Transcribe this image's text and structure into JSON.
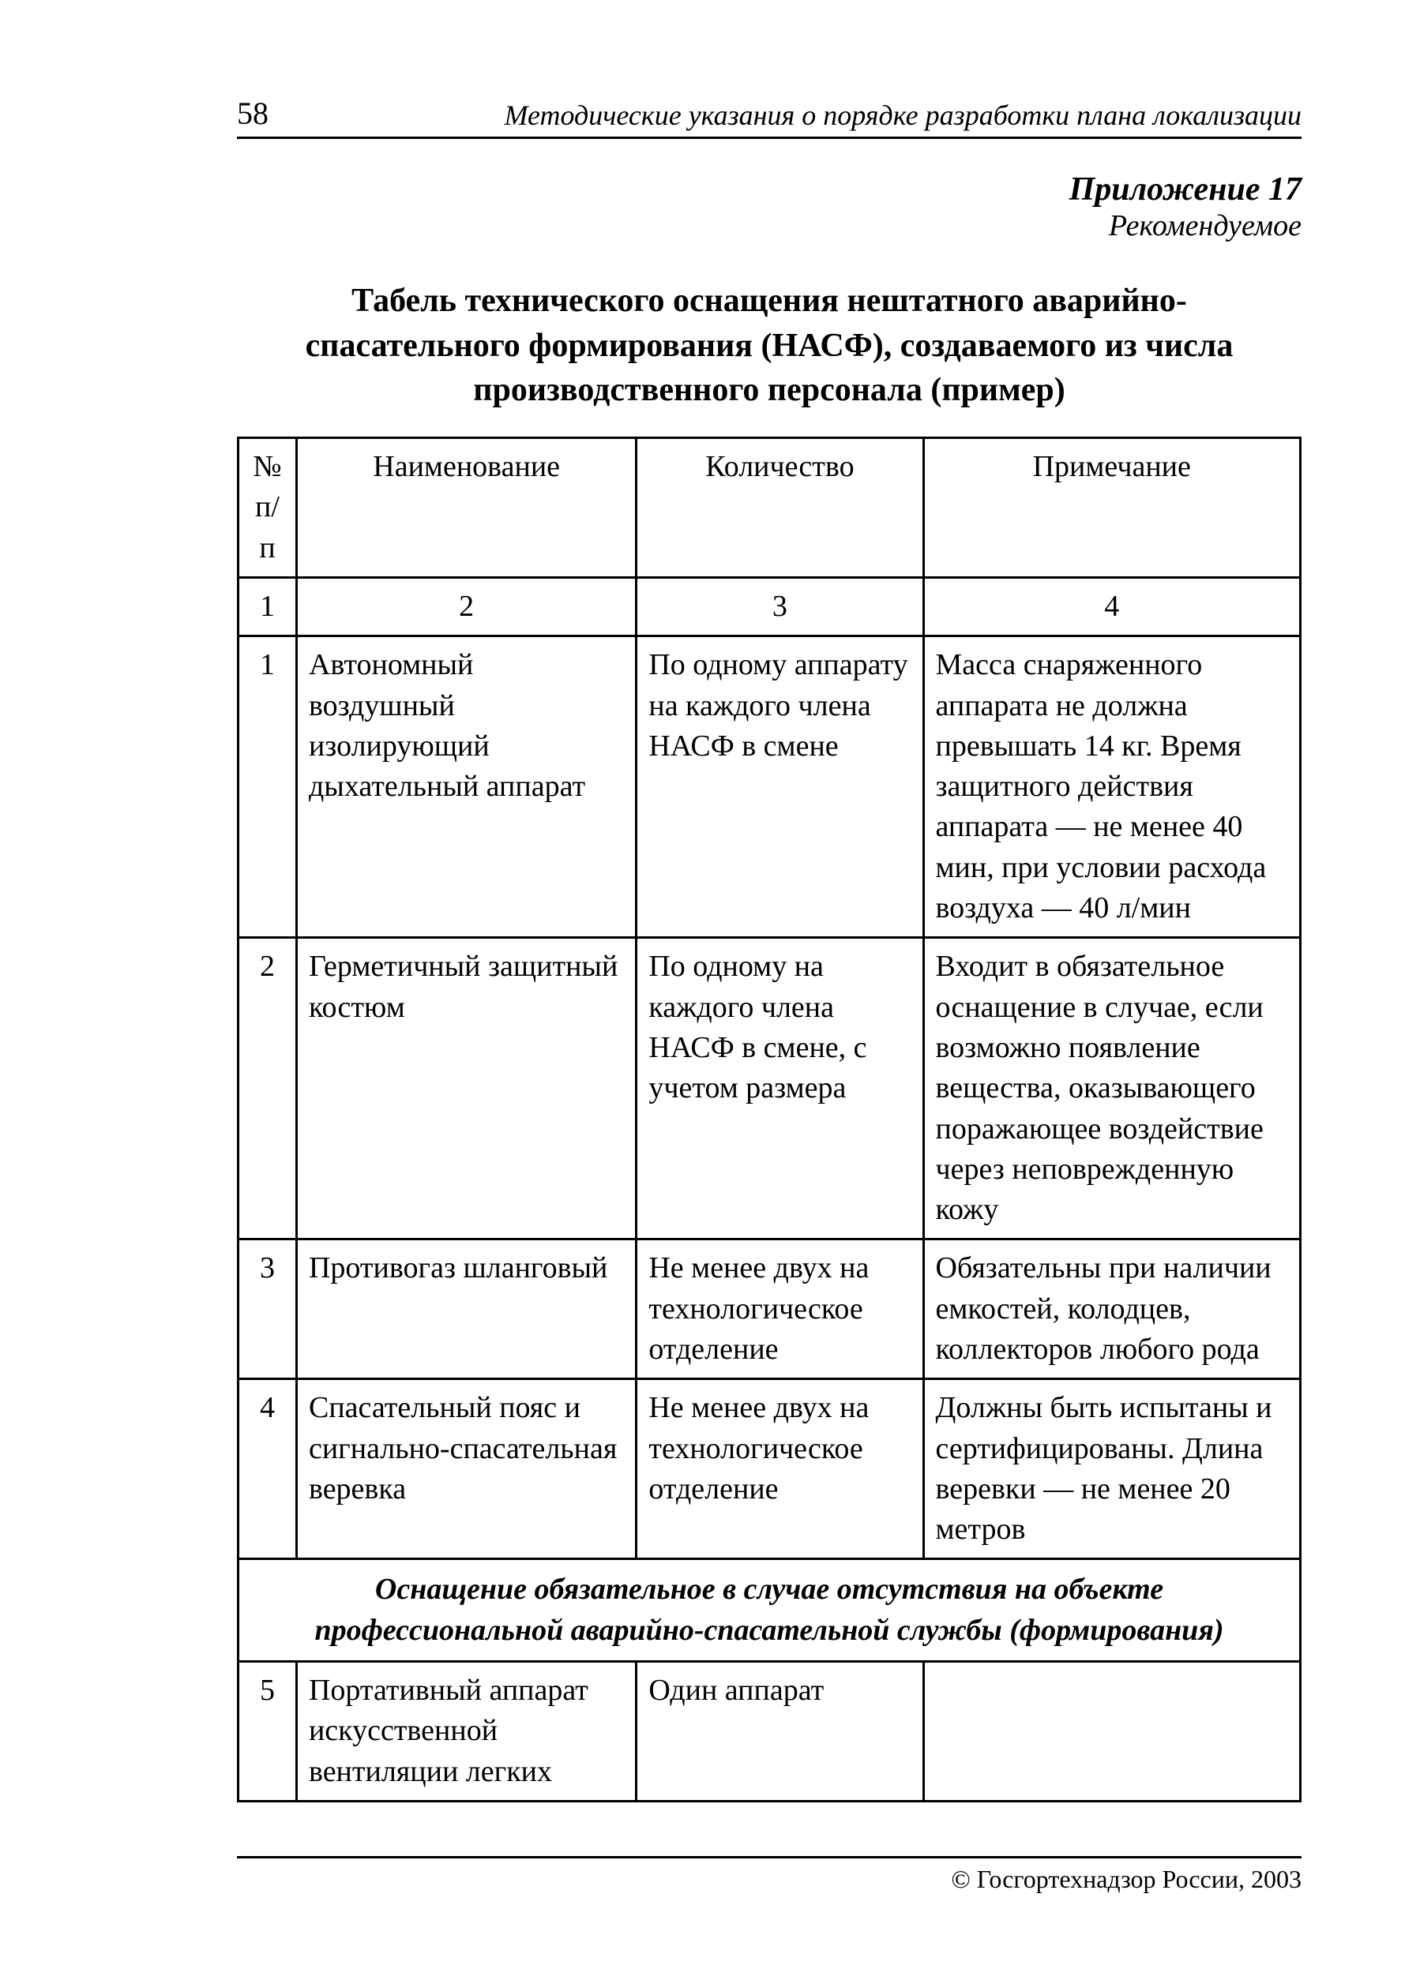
{
  "page": {
    "number": "58",
    "header": "Методические указания о порядке разработки плана локализации",
    "footer": "© Госгортехнадзор России, 2003"
  },
  "appendix": {
    "title": "Приложение 17",
    "subtitle": "Рекомендуемое"
  },
  "main_title": "Табель технического оснащения нештатного аварийно-спасательного формирования (НАСФ), создаваемого из числа производственного персонала (пример)",
  "table": {
    "headers": {
      "num": "№ п/п",
      "name": "Наименование",
      "qty": "Количество",
      "note": "Примечание"
    },
    "col_numbers": {
      "c1": "1",
      "c2": "2",
      "c3": "3",
      "c4": "4"
    },
    "rows": [
      {
        "num": "1",
        "name": "Автономный воздушный изолирующий дыхательный аппарат",
        "qty": "По одному аппарату на каждого члена НАСФ в смене",
        "note": "Масса снаряженного аппарата не должна превышать 14 кг. Время защитного действия аппарата — не менее 40 мин, при условии расхода воздуха — 40 л/мин"
      },
      {
        "num": "2",
        "name": "Герметичный защитный костюм",
        "qty": "По одному на каждого члена НАСФ в смене, с учетом размера",
        "note": "Входит в обязательное оснащение в случае, если возможно появление вещества, оказывающего поражающее воздействие через неповрежденную кожу"
      },
      {
        "num": "3",
        "name": "Противогаз шланговый",
        "qty": "Не менее двух на технологическое отделение",
        "note": "Обязательны при наличии емкостей, колодцев, коллекторов любого рода"
      },
      {
        "num": "4",
        "name": "Спасательный пояс и сигнально-спасательная веревка",
        "qty": "Не менее двух на технологическое отделение",
        "note": "Должны быть испытаны и сертифицированы. Длина веревки — не менее 20 метров"
      }
    ],
    "section_title": "Оснащение обязательное в случае отсутствия на объекте профессиональной аварийно-спасательной службы (формирования)",
    "rows2": [
      {
        "num": "5",
        "name": "Портативный аппарат искусственной вентиляции легких",
        "qty": "Один аппарат",
        "note": ""
      }
    ]
  },
  "styling": {
    "font_family": "Times New Roman",
    "body_font_size": 38,
    "title_font_size": 42,
    "header_font_size": 36,
    "page_num_font_size": 40,
    "footer_font_size": 32,
    "border_color": "#000000",
    "border_width": 3,
    "background_color": "#ffffff",
    "text_color": "#000000",
    "column_widths": {
      "num": "5.5%",
      "name": "32%",
      "qty": "27%",
      "note": "35.5%"
    }
  }
}
